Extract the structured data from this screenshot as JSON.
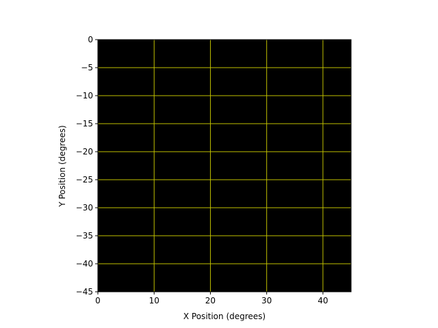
{
  "chart_data": {
    "type": "heatmap",
    "title": "",
    "xlabel": "X Position (degrees)",
    "ylabel": "Y Position (degrees)",
    "xlim": [
      0,
      45
    ],
    "ylim": [
      -45,
      0
    ],
    "xticks": [
      0,
      10,
      20,
      30,
      40
    ],
    "yticks": [
      0,
      -5,
      -10,
      -15,
      -20,
      -25,
      -30,
      -35,
      -40,
      -45
    ],
    "xtick_labels": [
      "0",
      "10",
      "20",
      "30",
      "40"
    ],
    "ytick_labels": [
      "0",
      "−5",
      "−10",
      "−15",
      "−20",
      "−25",
      "−30",
      "−35",
      "−40",
      "−45"
    ],
    "grid": true,
    "grid_color": "#bfbf00",
    "background_color": "#000000",
    "values": "uniform black image"
  }
}
